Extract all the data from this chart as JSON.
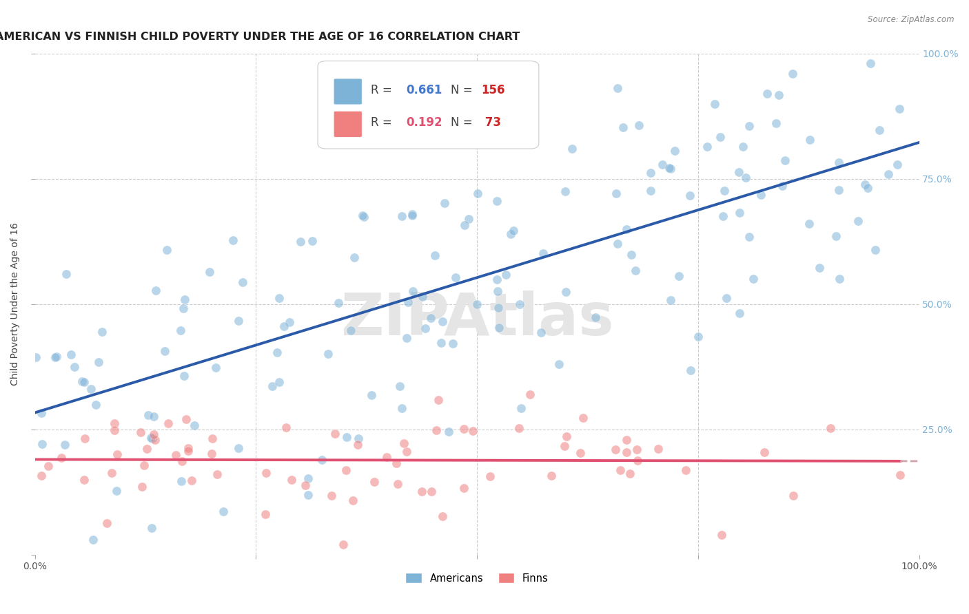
{
  "title": "AMERICAN VS FINNISH CHILD POVERTY UNDER THE AGE OF 16 CORRELATION CHART",
  "source": "Source: ZipAtlas.com",
  "ylabel": "Child Poverty Under the Age of 16",
  "xlim": [
    0,
    1
  ],
  "ylim": [
    0,
    1
  ],
  "ytick_positions": [
    0.25,
    0.5,
    0.75,
    1.0
  ],
  "americans_R": 0.661,
  "americans_N": 156,
  "finns_R": 0.192,
  "finns_N": 73,
  "americans_color": "#7EB3D8",
  "finns_color": "#F08080",
  "americans_line_color": "#2B5BA8",
  "finns_line_color": "#E05070",
  "finns_dashed_color": "#D4A0A8",
  "background_color": "#FFFFFF",
  "tick_color": "#7EB3D8",
  "title_fontsize": 11.5,
  "axis_label_fontsize": 10,
  "tick_fontsize": 10,
  "legend_fontsize": 12,
  "legend_R_color_american": "#4477CC",
  "legend_N_color_american": "#CC2222",
  "legend_R_color_finn": "#E05070",
  "legend_N_color_finn": "#CC2222"
}
